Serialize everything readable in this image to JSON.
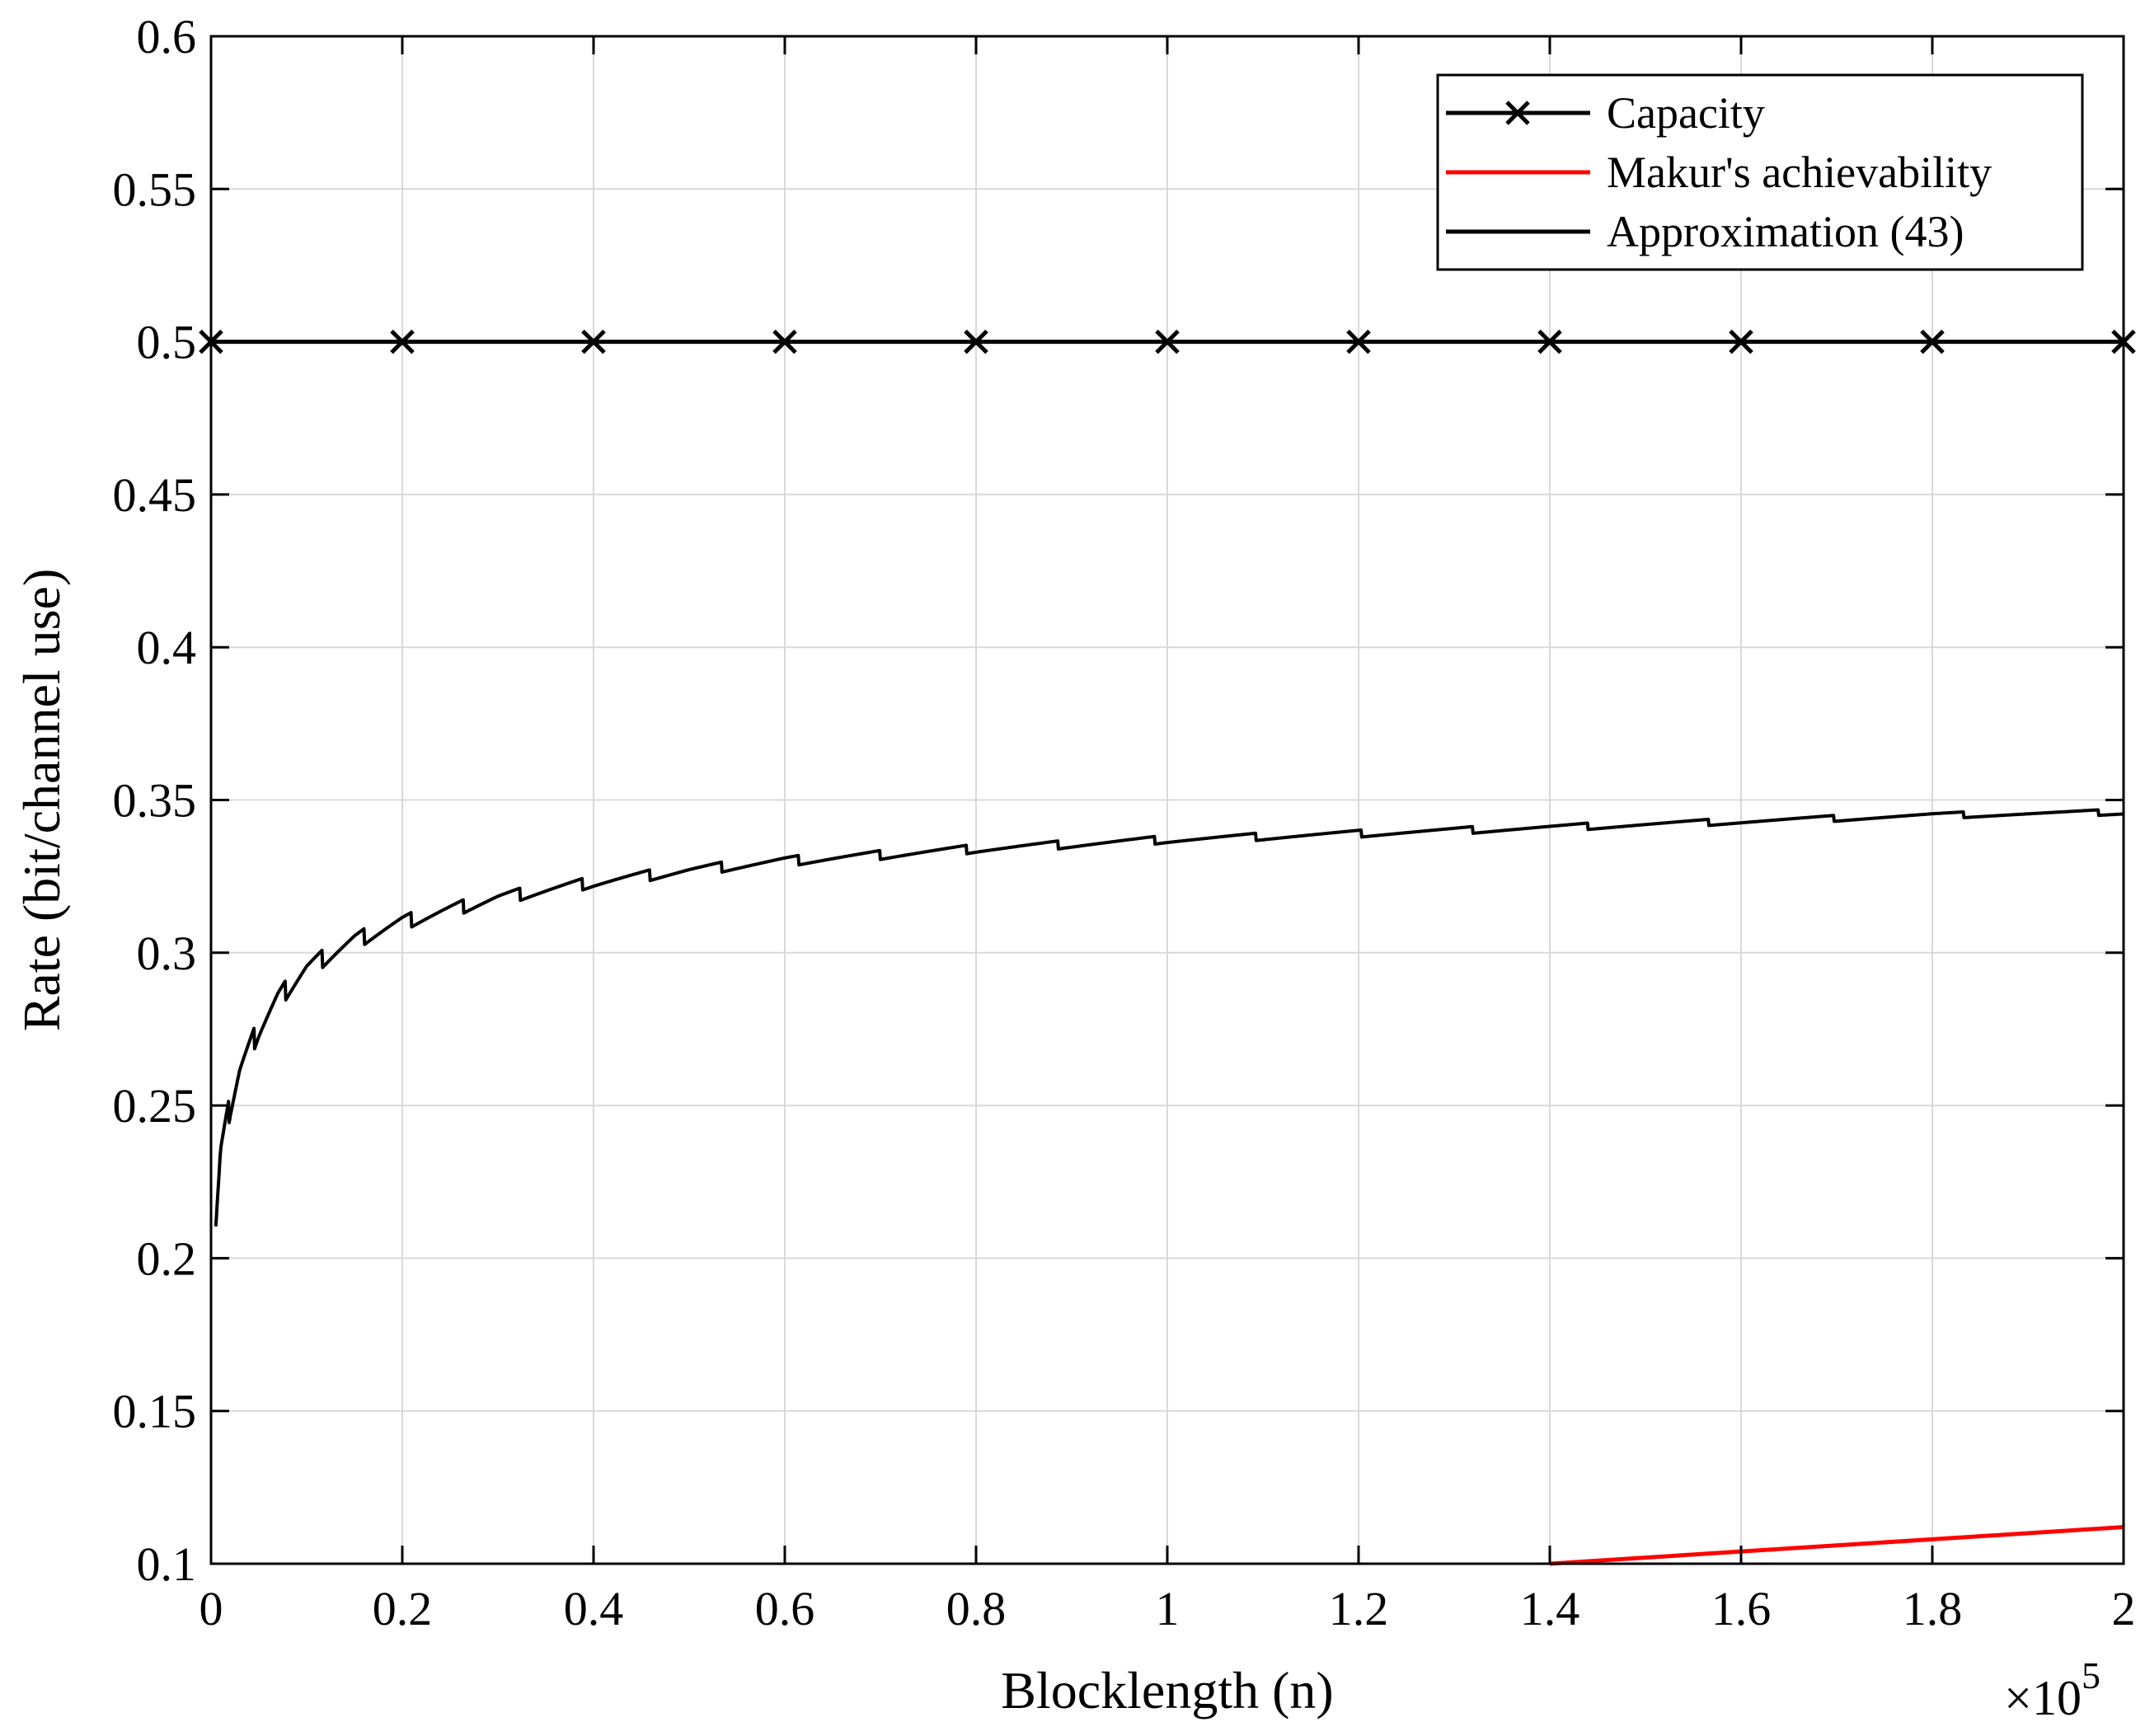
{
  "chart_data": {
    "type": "line",
    "title": "",
    "xlabel": "Blocklength (n)",
    "ylabel": "Rate (bit/channel use)",
    "x_multiplier_label": "×10",
    "x_multiplier_exponent": "5",
    "xlim": [
      0,
      2
    ],
    "ylim": [
      0.1,
      0.6
    ],
    "x_ticks": [
      "0",
      "0.2",
      "0.4",
      "0.6",
      "0.8",
      "1",
      "1.2",
      "1.4",
      "1.6",
      "1.8",
      "2"
    ],
    "y_ticks": [
      "0.1",
      "0.15",
      "0.2",
      "0.25",
      "0.3",
      "0.35",
      "0.4",
      "0.45",
      "0.5",
      "0.55",
      "0.6"
    ],
    "grid": true,
    "legend_position": "top-right",
    "series": [
      {
        "name": "Capacity",
        "color": "#000000",
        "marker": "x",
        "x": [
          0,
          0.2,
          0.4,
          0.6,
          0.8,
          1.0,
          1.2,
          1.4,
          1.6,
          1.8,
          2.0
        ],
        "y": [
          0.5,
          0.5,
          0.5,
          0.5,
          0.5,
          0.5,
          0.5,
          0.5,
          0.5,
          0.5,
          0.5
        ]
      },
      {
        "name": "Makur's achievability",
        "color": "#ff0000",
        "marker": "none",
        "x": [
          1.4,
          1.6,
          1.8,
          2.0
        ],
        "y": [
          0.1,
          0.104,
          0.108,
          0.112
        ]
      },
      {
        "name": "Approximation (43)",
        "color": "#000000",
        "marker": "none",
        "x": [
          0.005,
          0.01,
          0.02,
          0.03,
          0.05,
          0.07,
          0.1,
          0.15,
          0.2,
          0.3,
          0.4,
          0.5,
          0.6,
          0.8,
          1.0,
          1.2,
          1.4,
          1.6,
          1.8,
          2.0
        ],
        "y": [
          0.212,
          0.235,
          0.25,
          0.262,
          0.275,
          0.285,
          0.295,
          0.304,
          0.31,
          0.318,
          0.323,
          0.327,
          0.33,
          0.334,
          0.337,
          0.339,
          0.341,
          0.343,
          0.345,
          0.346
        ]
      }
    ]
  }
}
